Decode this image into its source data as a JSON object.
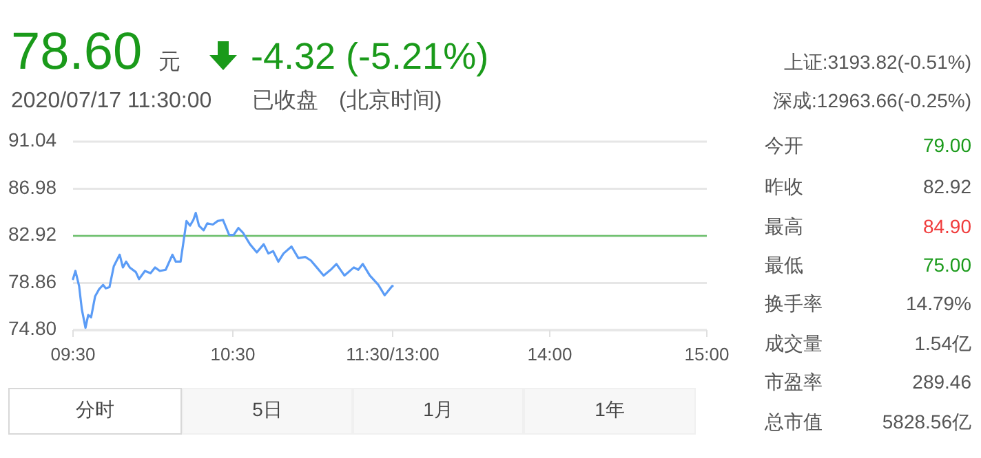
{
  "chart_data": [
    {
      "type": "line",
      "xlim": [
        9.5,
        11.5
      ],
      "xticks": [
        {
          "value": 9.5,
          "label": "09:30"
        },
        {
          "value": 10.5,
          "label": "10:30"
        },
        {
          "value": 11.5,
          "label": "11:30/13:00"
        }
      ],
      "ylim": [
        74.8,
        91.04
      ],
      "yticks": [
        {
          "value": 74.8,
          "label": "74.80"
        },
        78.86,
        82.92,
        86.98,
        91.04
      ],
      "grid": "y",
      "ref_lines": [
        {
          "axis": "y",
          "value": 82.92,
          "color": "#6cc06c"
        }
      ],
      "series": [
        {
          "color": "#5b9cf6",
          "x": [
            9.5,
            9.515,
            9.538,
            9.555,
            9.578,
            9.595,
            9.613,
            9.638,
            9.662,
            9.688,
            9.705,
            9.728,
            9.755,
            9.792,
            9.812,
            9.832,
            9.855,
            9.893,
            9.913,
            9.95,
            9.985,
            10.013,
            10.043,
            10.08,
            10.122,
            10.143,
            10.173,
            10.21,
            10.232,
            10.253,
            10.268,
            10.288,
            10.317,
            10.34,
            10.375,
            10.405,
            10.438,
            10.477,
            10.505,
            10.535,
            10.563,
            10.607,
            10.65,
            10.693,
            10.722,
            10.752,
            10.785,
            10.817,
            10.867,
            10.91,
            10.953,
            10.988,
            11.025,
            11.068,
            11.112,
            11.148,
            11.198,
            11.257,
            11.285,
            11.313,
            11.357,
            11.41,
            11.45,
            11.473,
            11.497,
            11.5
          ],
          "values": [
            79.2,
            79.9,
            78.6,
            76.6,
            75.0,
            76.1,
            75.9,
            77.7,
            78.3,
            78.7,
            78.4,
            78.5,
            80.3,
            81.3,
            80.2,
            80.7,
            80.2,
            79.8,
            79.2,
            79.9,
            79.7,
            80.2,
            79.9,
            80.0,
            81.3,
            80.7,
            80.7,
            84.2,
            83.8,
            84.3,
            84.9,
            83.8,
            83.4,
            84.0,
            83.9,
            84.2,
            84.3,
            83.0,
            83.0,
            83.6,
            83.2,
            82.2,
            81.5,
            82.2,
            81.4,
            81.6,
            80.7,
            81.4,
            82.0,
            81.0,
            81.1,
            80.8,
            80.2,
            79.5,
            80.0,
            80.5,
            79.5,
            80.2,
            80.0,
            80.5,
            79.5,
            78.7,
            77.8,
            78.2,
            78.6,
            78.6
          ]
        }
      ]
    },
    {
      "type": "line",
      "xlim": [
        13,
        15
      ],
      "xticks": [
        {
          "value": 14,
          "label": "14:00"
        },
        {
          "value": 15,
          "label": "15:00"
        }
      ],
      "ylim": [
        74.8,
        91.04
      ],
      "yticks": [
        74.8,
        78.86,
        82.92,
        86.98,
        91.04
      ],
      "grid": "y",
      "tick_labels": "x",
      "ref_lines": [
        {
          "axis": "y",
          "value": 82.92,
          "color": "#6cc06c"
        }
      ]
    },
    {
      "type": "other",
      "annotations": [
        "78.60",
        "元",
        "-4.32 (-5.21%)",
        "2020/07/17 11:30:00",
        "已收盘",
        "(北京时间)",
        "上证:3193.82(-0.51%)",
        "深成:12963.66(-0.25%)",
        "今开",
        "79.00",
        "昨收",
        "82.92",
        "最高",
        "84.90",
        "最低",
        "75.00",
        "换手率",
        "14.79%",
        "成交量",
        "1.54亿",
        "市盈率",
        "289.46",
        "总市值",
        "5828.56亿",
        "分时",
        "5日",
        "1月",
        "1年"
      ]
    }
  ]
}
